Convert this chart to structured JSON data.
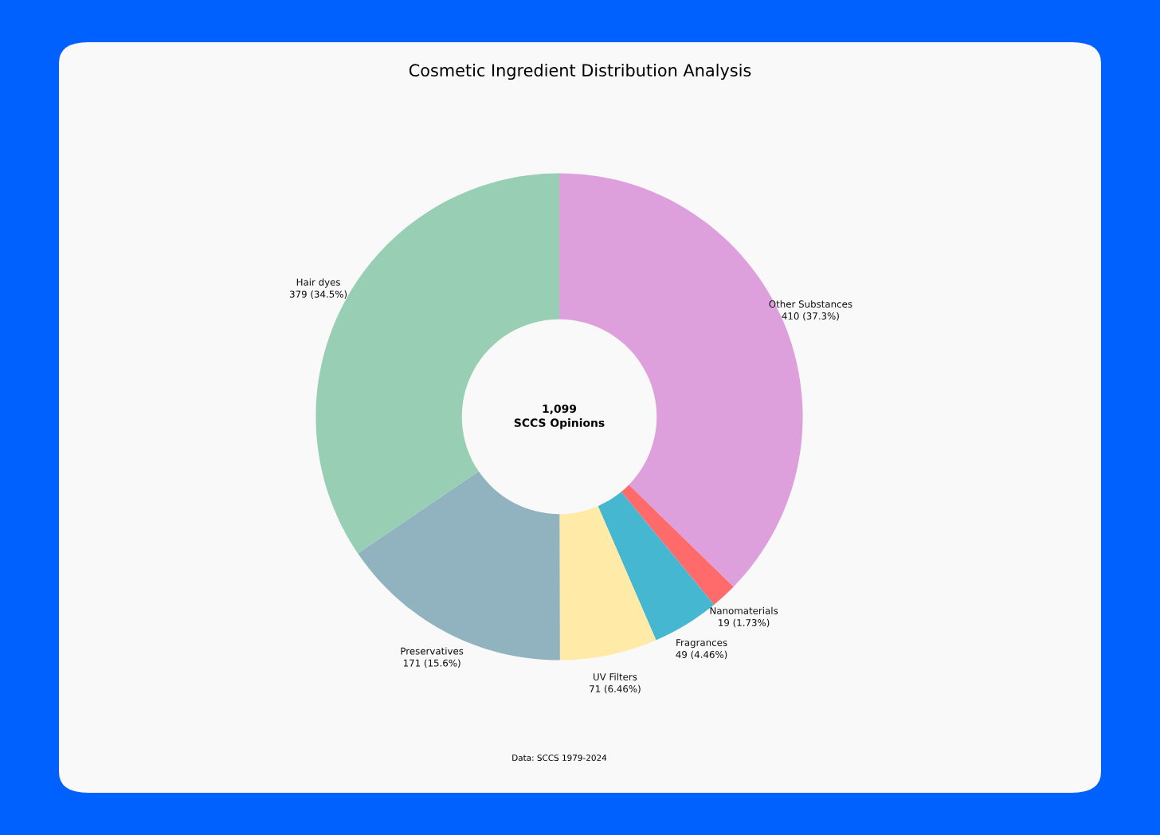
{
  "chart_data": {
    "type": "donut",
    "title": "Cosmetic Ingredient Distribution Analysis",
    "categories": [
      "Other Substances",
      "Nanomaterials",
      "Fragrances",
      "UV Filters",
      "Preservatives",
      "Hair dyes"
    ],
    "values": [
      410,
      19,
      49,
      71,
      171,
      379
    ],
    "colors": [
      "#dda0dd",
      "#ff6b6b",
      "#45b7d1",
      "#ffeaa7",
      "#90b3bf",
      "#98cfb4"
    ],
    "value_labels": [
      "410 (37.3%)",
      "19 (1.73%)",
      "49 (4.46%)",
      "71 (6.46%)",
      "171 (15.6%)",
      "379 (34.5%)"
    ],
    "annotations": [
      "1,099\nSCCS Opinions",
      "Data: SCCS 1979-2024"
    ],
    "legend": false
  }
}
